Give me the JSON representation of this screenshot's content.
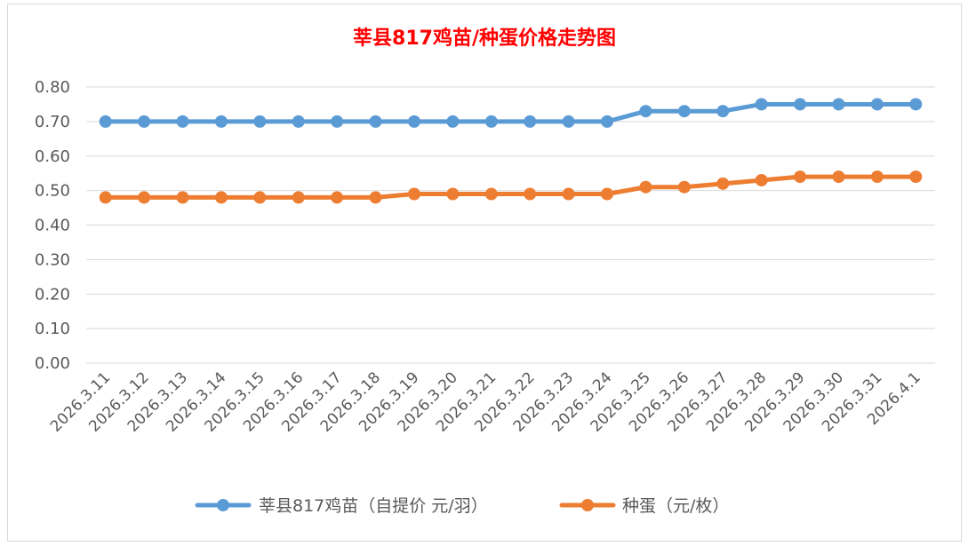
{
  "chart_data": {
    "type": "line",
    "title": "莘县817鸡苗/种蛋价格走势图",
    "categories": [
      "2026.3.11",
      "2026.3.12",
      "2026.3.13",
      "2026.3.14",
      "2026.3.15",
      "2026.3.16",
      "2026.3.17",
      "2026.3.18",
      "2026.3.19",
      "2026.3.20",
      "2026.3.21",
      "2026.3.22",
      "2026.3.23",
      "2026.3.24",
      "2026.3.25",
      "2026.3.26",
      "2026.3.27",
      "2026.3.28",
      "2026.3.29",
      "2026.3.30",
      "2026.3.31",
      "2026.4.1"
    ],
    "series": [
      {
        "name": "莘县817鸡苗（自提价 元/羽）",
        "color": "#5b9bd5",
        "values": [
          0.7,
          0.7,
          0.7,
          0.7,
          0.7,
          0.7,
          0.7,
          0.7,
          0.7,
          0.7,
          0.7,
          0.7,
          0.7,
          0.7,
          0.73,
          0.73,
          0.73,
          0.75,
          0.75,
          0.75,
          0.75,
          0.75
        ]
      },
      {
        "name": "种蛋（元/枚）",
        "color": "#ed7d31",
        "values": [
          0.48,
          0.48,
          0.48,
          0.48,
          0.48,
          0.48,
          0.48,
          0.48,
          0.49,
          0.49,
          0.49,
          0.49,
          0.49,
          0.49,
          0.51,
          0.51,
          0.52,
          0.53,
          0.54,
          0.54,
          0.54,
          0.54
        ]
      }
    ],
    "yticks": [
      "0.00",
      "0.10",
      "0.20",
      "0.30",
      "0.40",
      "0.50",
      "0.60",
      "0.70",
      "0.80"
    ],
    "ylim": [
      0,
      0.8
    ],
    "grid": true,
    "legend": "bottom"
  }
}
